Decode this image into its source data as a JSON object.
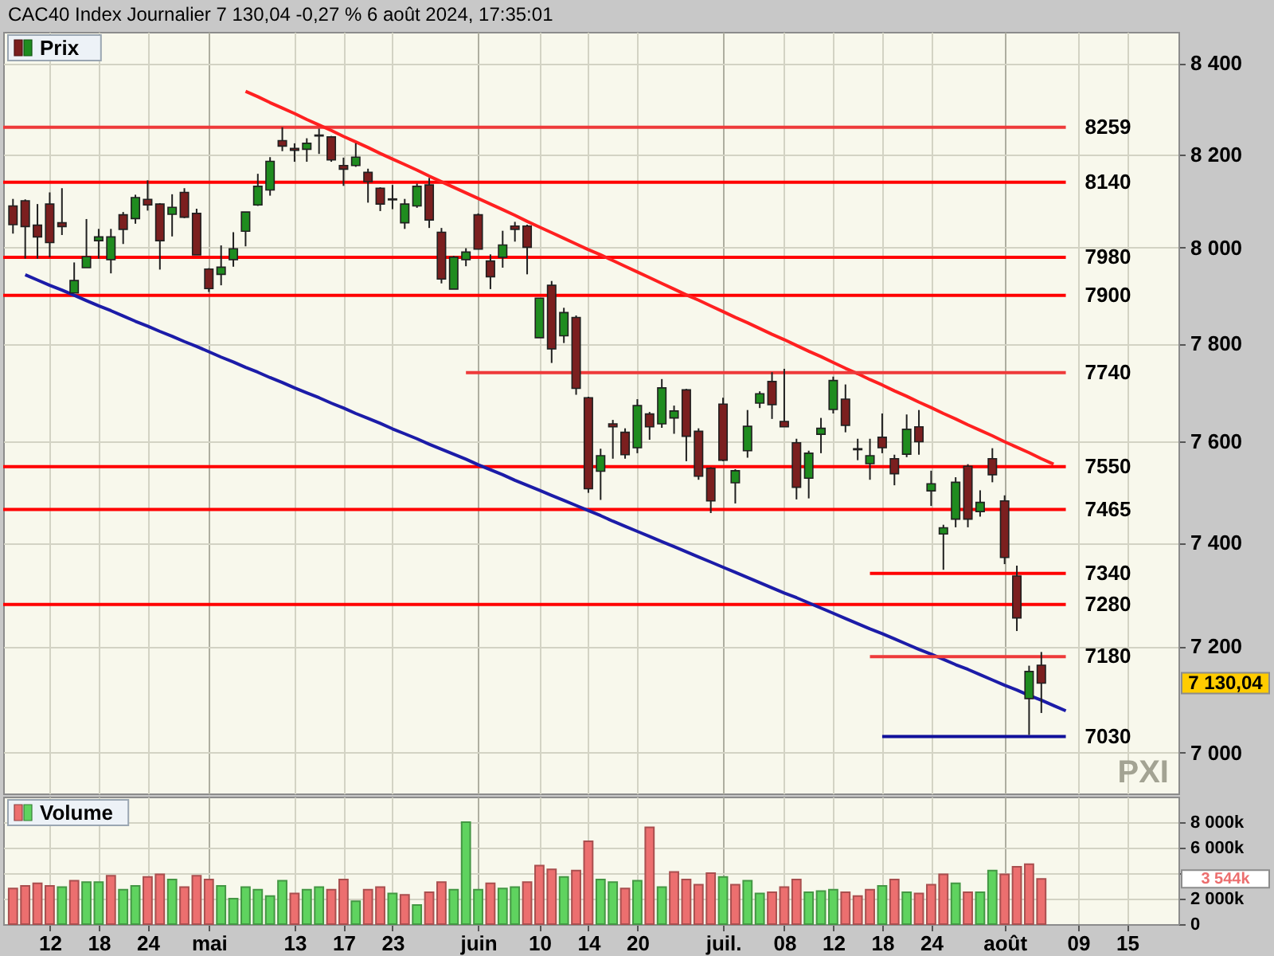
{
  "chart_data": [
    {
      "type": "candlestick",
      "title": "CAC40 Index Journalier 7 130,04 -0,27 % 6 août 2024, 17:35:01",
      "categories": [
        null,
        null,
        null,
        null,
        null,
        null,
        null,
        null,
        null,
        null,
        null,
        null,
        null,
        null,
        null,
        null,
        null,
        null,
        null,
        null,
        null,
        null,
        null,
        null,
        null,
        null,
        null,
        null,
        null,
        null,
        null,
        null,
        null,
        null,
        null,
        null,
        null,
        null,
        null,
        null,
        null,
        null,
        null,
        null,
        null,
        null,
        null,
        null,
        null,
        null,
        null,
        null,
        null,
        null,
        null,
        null,
        null,
        null,
        null,
        null,
        null,
        null,
        null,
        null,
        null,
        null,
        null,
        null,
        null,
        null,
        null,
        null,
        null,
        null,
        null,
        null,
        null,
        null,
        null,
        null,
        null,
        null,
        null,
        null,
        null,
        null,
        null,
        null,
        null,
        null,
        null,
        null,
        null,
        null,
        null,
        null
      ],
      "series": [
        {
          "name": "Prix",
          "type": "candlestick",
          "ohlc": [
            [
              8089,
              8104,
              8030,
              8049
            ],
            [
              8100,
              8103,
              7977,
              8045
            ],
            [
              8048,
              8093,
              7977,
              8023
            ],
            [
              8093,
              8118,
              7980,
              8011
            ],
            [
              8053,
              8127,
              8027,
              8045
            ],
            [
              7905,
              7969,
              7905,
              7931
            ],
            [
              7958,
              8061,
              7958,
              7981
            ],
            [
              8015,
              8040,
              7977,
              8023
            ],
            [
              7975,
              8040,
              7946,
              8023
            ],
            [
              8070,
              8076,
              8008,
              8039
            ],
            [
              8062,
              8113,
              8051,
              8107
            ],
            [
              8103,
              8144,
              8079,
              8091
            ],
            [
              8093,
              8095,
              7954,
              8015
            ],
            [
              8071,
              8114,
              8024,
              8086
            ],
            [
              8118,
              8127,
              8063,
              8065
            ],
            [
              8073,
              8083,
              7985,
              7985
            ],
            [
              7955,
              7957,
              7907,
              7914
            ],
            [
              7944,
              8005,
              7921,
              7959
            ],
            [
              7975,
              8033,
              7960,
              7998
            ],
            [
              8035,
              8076,
              8003,
              8076
            ],
            [
              8091,
              8158,
              8089,
              8131
            ],
            [
              8123,
              8194,
              8111,
              8185
            ],
            [
              8230,
              8259,
              8207,
              8218
            ],
            [
              8213,
              8224,
              8184,
              8209
            ],
            [
              8211,
              8235,
              8184,
              8224
            ],
            [
              8240,
              8256,
              8201,
              8242
            ],
            [
              8238,
              8240,
              8184,
              8188
            ],
            [
              8176,
              8193,
              8132,
              8168
            ],
            [
              8176,
              8224,
              8173,
              8194
            ],
            [
              8161,
              8169,
              8096,
              8141
            ],
            [
              8127,
              8129,
              8078,
              8093
            ],
            [
              8102,
              8134,
              8082,
              8104
            ],
            [
              8053,
              8104,
              8040,
              8093
            ],
            [
              8089,
              8137,
              8085,
              8131
            ],
            [
              8134,
              8149,
              8042,
              8059
            ],
            [
              8033,
              8042,
              7925,
              7934
            ],
            [
              7913,
              7983,
              7913,
              7980
            ],
            [
              7975,
              7999,
              7961,
              7991
            ],
            [
              8070,
              8073,
              7997,
              7997
            ],
            [
              7972,
              7986,
              7913,
              7939
            ],
            [
              7980,
              8036,
              7958,
              8006
            ],
            [
              8046,
              8055,
              8013,
              8039
            ],
            [
              8046,
              8049,
              7944,
              8001
            ],
            [
              7812,
              7894,
              7812,
              7894
            ],
            [
              7921,
              7930,
              7760,
              7789
            ],
            [
              7816,
              7874,
              7801,
              7864
            ],
            [
              7854,
              7858,
              7695,
              7708
            ],
            [
              7689,
              7691,
              7498,
              7506
            ],
            [
              7541,
              7586,
              7484,
              7572
            ],
            [
              7636,
              7644,
              7566,
              7630
            ],
            [
              7619,
              7627,
              7566,
              7574
            ],
            [
              7588,
              7686,
              7577,
              7673
            ],
            [
              7656,
              7660,
              7604,
              7630
            ],
            [
              7636,
              7727,
              7628,
              7709
            ],
            [
              7648,
              7673,
              7616,
              7662
            ],
            [
              7705,
              7707,
              7561,
              7611
            ],
            [
              7621,
              7627,
              7524,
              7531
            ],
            [
              7547,
              7549,
              7458,
              7482
            ],
            [
              7676,
              7689,
              7561,
              7563
            ],
            [
              7518,
              7545,
              7477,
              7542
            ],
            [
              7582,
              7664,
              7568,
              7631
            ],
            [
              7678,
              7702,
              7668,
              7697
            ],
            [
              7722,
              7741,
              7646,
              7675
            ],
            [
              7641,
              7748,
              7630,
              7630
            ],
            [
              7598,
              7606,
              7485,
              7509
            ],
            [
              7527,
              7582,
              7487,
              7577
            ],
            [
              7615,
              7648,
              7577,
              7627
            ],
            [
              7665,
              7732,
              7657,
              7724
            ],
            [
              7686,
              7716,
              7619,
              7633
            ],
            [
              7586,
              7606,
              7563,
              7584
            ],
            [
              7556,
              7606,
              7524,
              7572
            ],
            [
              7609,
              7657,
              7577,
              7588
            ],
            [
              7566,
              7574,
              7513,
              7536
            ],
            [
              7575,
              7655,
              7569,
              7625
            ],
            [
              7630,
              7664,
              7574,
              7600
            ],
            [
              7502,
              7542,
              7472,
              7516
            ],
            [
              7417,
              7435,
              7347,
              7429
            ],
            [
              7446,
              7529,
              7430,
              7519
            ],
            [
              7551,
              7555,
              7430,
              7446
            ],
            [
              7461,
              7503,
              7451,
              7479
            ],
            [
              7566,
              7587,
              7519,
              7534
            ],
            [
              7482,
              7493,
              7358,
              7371
            ],
            [
              7335,
              7355,
              7229,
              7254
            ],
            [
              7101,
              7163,
              7033,
              7152
            ],
            [
              7164,
              7189,
              7074,
              7130.04
            ],
            null,
            null,
            null,
            null,
            null,
            null,
            null,
            null,
            null,
            null,
            null
          ],
          "colors": [
            "#7b1f1f",
            "#7b1f1f",
            "#7b1f1f",
            "#7b1f1f",
            "#7b1f1f",
            "#1f8c1f",
            "#1f8c1f",
            "#1f8c1f",
            "#1f8c1f",
            "#7b1f1f",
            "#1f8c1f",
            "#7b1f1f",
            "#7b1f1f",
            "#1f8c1f",
            "#7b1f1f",
            "#7b1f1f",
            "#7b1f1f",
            "#1f8c1f",
            "#1f8c1f",
            "#1f8c1f",
            "#1f8c1f",
            "#1f8c1f",
            "#7b1f1f",
            "#7b1f1f",
            "#1f8c1f",
            "#1f8c1f",
            "#7b1f1f",
            "#7b1f1f",
            "#1f8c1f",
            "#7b1f1f",
            "#7b1f1f",
            "#1f8c1f",
            "#1f8c1f",
            "#1f8c1f",
            "#7b1f1f",
            "#7b1f1f",
            "#1f8c1f",
            "#1f8c1f",
            "#7b1f1f",
            "#7b1f1f",
            "#1f8c1f",
            "#7b1f1f",
            "#7b1f1f",
            "#1f8c1f",
            "#7b1f1f",
            "#1f8c1f",
            "#7b1f1f",
            "#7b1f1f",
            "#1f8c1f",
            "#7b1f1f",
            "#7b1f1f",
            "#1f8c1f",
            "#7b1f1f",
            "#1f8c1f",
            "#1f8c1f",
            "#7b1f1f",
            "#7b1f1f",
            "#7b1f1f",
            "#7b1f1f",
            "#1f8c1f",
            "#1f8c1f",
            "#1f8c1f",
            "#7b1f1f",
            "#7b1f1f",
            "#7b1f1f",
            "#1f8c1f",
            "#1f8c1f",
            "#1f8c1f",
            "#7b1f1f",
            "#7b1f1f",
            "#1f8c1f",
            "#7b1f1f",
            "#7b1f1f",
            "#1f8c1f",
            "#7b1f1f",
            "#1f8c1f",
            "#1f8c1f",
            "#1f8c1f",
            "#7b1f1f",
            "#1f8c1f",
            "#7b1f1f",
            "#7b1f1f",
            "#7b1f1f",
            "#1f8c1f",
            "#7b1f1f",
            null,
            null,
            null,
            null,
            null,
            null,
            null,
            null,
            null,
            null,
            null
          ]
        },
        {
          "type": "line",
          "color": "#ff2020",
          "values": [
            null,
            null,
            null,
            null,
            null,
            null,
            null,
            null,
            null,
            null,
            null,
            null,
            null,
            null,
            null,
            null,
            null,
            null,
            null,
            8338,
            8326,
            8313,
            8301,
            8289,
            8276,
            8264,
            8252,
            8239,
            8227,
            8215,
            8202,
            8190,
            8178,
            8166,
            8153,
            8141,
            8129,
            8117,
            8105,
            8093,
            8081,
            8069,
            8056,
            8044,
            8032,
            8020,
            8008,
            7996,
            7985,
            7973,
            7961,
            7949,
            7937,
            7925,
            7913,
            7901,
            7890,
            7878,
            7866,
            7854,
            7843,
            7831,
            7819,
            7808,
            7796,
            7784,
            7773,
            7761,
            7749,
            7738,
            7726,
            7715,
            7703,
            7692,
            7680,
            7669,
            7657,
            7646,
            7634,
            7623,
            7612,
            7600,
            7589,
            7578,
            7566,
            7555,
            null,
            null,
            null,
            null,
            null,
            null,
            null,
            null,
            null,
            null
          ]
        },
        {
          "type": "line",
          "color": "#1c1ca8",
          "values": [
            null,
            7943,
            7932,
            7921,
            7911,
            7900,
            7889,
            7878,
            7868,
            7857,
            7846,
            7836,
            7825,
            7815,
            7804,
            7794,
            7783,
            7772,
            7762,
            7751,
            7741,
            7730,
            7720,
            7709,
            7699,
            7689,
            7678,
            7668,
            7657,
            7647,
            7637,
            7626,
            7616,
            7606,
            7595,
            7585,
            7575,
            7565,
            7554,
            7544,
            7534,
            7523,
            7513,
            7503,
            7493,
            7483,
            7473,
            7463,
            7453,
            7442,
            7432,
            7422,
            7412,
            7402,
            7392,
            7382,
            7372,
            7362,
            7352,
            7342,
            7332,
            7322,
            7312,
            7302,
            7293,
            7283,
            7273,
            7263,
            7253,
            7243,
            7233,
            7224,
            7214,
            7204,
            7194,
            7185,
            7175,
            7165,
            7156,
            7146,
            7136,
            7126,
            7117,
            7107,
            7098,
            7088,
            7078,
            null,
            null,
            null,
            null,
            null,
            null,
            null,
            null,
            null
          ]
        },
        {
          "name": "7740",
          "type": "line",
          "color": "#ee3a3a",
          "values": [
            null,
            null,
            null,
            null,
            null,
            null,
            null,
            null,
            null,
            null,
            null,
            null,
            null,
            null,
            null,
            null,
            null,
            null,
            null,
            null,
            null,
            null,
            null,
            null,
            null,
            null,
            null,
            null,
            null,
            null,
            null,
            null,
            null,
            null,
            null,
            null,
            null,
            7740,
            7740,
            7740,
            7740,
            7740,
            7740,
            7740,
            7740,
            7740,
            7740,
            7740,
            7740,
            7740,
            7740,
            7740,
            7740,
            7740,
            7740,
            7740,
            7740,
            7740,
            7740,
            7740,
            7740,
            7740,
            7740,
            7740,
            7740,
            7740,
            7740,
            7740,
            7740,
            7740,
            7740,
            7740,
            7740,
            7740,
            7740,
            7740,
            7740,
            7740,
            7740,
            7740,
            7740,
            7740,
            7740,
            7740,
            7740,
            7740,
            7740,
            null,
            null,
            null,
            null,
            null,
            null,
            null,
            null,
            null
          ]
        },
        {
          "name": "7340",
          "type": "line",
          "color": "#ff0000",
          "values": [
            null,
            null,
            null,
            null,
            null,
            null,
            null,
            null,
            null,
            null,
            null,
            null,
            null,
            null,
            null,
            null,
            null,
            null,
            null,
            null,
            null,
            null,
            null,
            null,
            null,
            null,
            null,
            null,
            null,
            null,
            null,
            null,
            null,
            null,
            null,
            null,
            null,
            null,
            null,
            null,
            null,
            null,
            null,
            null,
            null,
            null,
            null,
            null,
            null,
            null,
            null,
            null,
            null,
            null,
            null,
            null,
            null,
            null,
            null,
            null,
            null,
            null,
            null,
            null,
            null,
            null,
            null,
            null,
            null,
            null,
            7340,
            7340,
            7340,
            7340,
            7340,
            7340,
            7340,
            7340,
            7340,
            7340,
            7340,
            7340,
            7340,
            7340,
            7340,
            7340,
            7340,
            null,
            null,
            null,
            null,
            null,
            null,
            null,
            null,
            null
          ]
        },
        {
          "name": "7180",
          "type": "line",
          "color": "#ee3a3a",
          "values": [
            null,
            null,
            null,
            null,
            null,
            null,
            null,
            null,
            null,
            null,
            null,
            null,
            null,
            null,
            null,
            null,
            null,
            null,
            null,
            null,
            null,
            null,
            null,
            null,
            null,
            null,
            null,
            null,
            null,
            null,
            null,
            null,
            null,
            null,
            null,
            null,
            null,
            null,
            null,
            null,
            null,
            null,
            null,
            null,
            null,
            null,
            null,
            null,
            null,
            null,
            null,
            null,
            null,
            null,
            null,
            null,
            null,
            null,
            null,
            null,
            null,
            null,
            null,
            null,
            null,
            null,
            null,
            null,
            null,
            null,
            7180,
            7180,
            7180,
            7180,
            7180,
            7180,
            7180,
            7180,
            7180,
            7180,
            7180,
            7180,
            7180,
            7180,
            7180,
            7180,
            7180,
            null,
            null,
            null,
            null,
            null,
            null,
            null,
            null,
            null
          ]
        },
        {
          "name": "7030",
          "type": "line",
          "color": "#10109a",
          "values": [
            null,
            null,
            null,
            null,
            null,
            null,
            null,
            null,
            null,
            null,
            null,
            null,
            null,
            null,
            null,
            null,
            null,
            null,
            null,
            null,
            null,
            null,
            null,
            null,
            null,
            null,
            null,
            null,
            null,
            null,
            null,
            null,
            null,
            null,
            null,
            null,
            null,
            null,
            null,
            null,
            null,
            null,
            null,
            null,
            null,
            null,
            null,
            null,
            null,
            null,
            null,
            null,
            null,
            null,
            null,
            null,
            null,
            null,
            null,
            null,
            null,
            null,
            null,
            null,
            null,
            null,
            null,
            null,
            null,
            null,
            null,
            7030,
            7030,
            7030,
            7030,
            7030,
            7030,
            7030,
            7030,
            7030,
            7030,
            7030,
            7030,
            7030,
            7030,
            7030,
            7030,
            null,
            null,
            null,
            null,
            null,
            null,
            null,
            null,
            null
          ]
        }
      ],
      "ref_lines": [
        {
          "axis": "y",
          "value": 8259,
          "label": "8259",
          "color": "#ee3a3a"
        },
        {
          "axis": "y",
          "value": 8140,
          "label": "8140",
          "color": "#ff0000"
        },
        {
          "axis": "y",
          "value": 7980,
          "label": "7980",
          "color": "#ff0000"
        },
        {
          "axis": "y",
          "value": 7900,
          "label": "7900",
          "color": "#ff0000"
        },
        {
          "axis": "y",
          "value": 7550,
          "label": "7550",
          "color": "#ff0000"
        },
        {
          "axis": "y",
          "value": 7465,
          "label": "7465",
          "color": "#ff0000"
        },
        {
          "axis": "y",
          "value": 7280,
          "label": "7280",
          "color": "#ff0000"
        }
      ],
      "ylim": [
        6925,
        8470
      ],
      "yticks": [
        {
          "value": 7000,
          "label": "7 000"
        },
        {
          "value": 7200,
          "label": "7 200"
        },
        {
          "value": 7400,
          "label": "7 400"
        },
        {
          "value": 7600,
          "label": "7 600"
        },
        {
          "value": 7800,
          "label": "7 800"
        },
        {
          "value": 8000,
          "label": "8 000"
        },
        {
          "value": 8200,
          "label": "8 200"
        },
        {
          "value": 8400,
          "label": "8 400"
        }
      ],
      "log": "y",
      "grid": true,
      "legend": "top left",
      "tick_labels": "y",
      "annotations": [
        "7 130,04",
        "PXI"
      ]
    },
    {
      "type": "bar",
      "categories": [
        null,
        null,
        null,
        "12",
        null,
        null,
        null,
        "18",
        null,
        null,
        null,
        "24",
        null,
        null,
        null,
        null,
        "mai",
        null,
        null,
        null,
        null,
        null,
        null,
        "13",
        null,
        null,
        null,
        "17",
        null,
        null,
        null,
        "23",
        null,
        null,
        null,
        null,
        null,
        null,
        "juin",
        null,
        null,
        null,
        null,
        "10",
        null,
        null,
        null,
        "14",
        null,
        null,
        null,
        "20",
        null,
        null,
        null,
        null,
        null,
        null,
        "juil.",
        null,
        null,
        null,
        null,
        "08",
        null,
        null,
        null,
        "12",
        null,
        null,
        null,
        "18",
        null,
        null,
        null,
        "24",
        null,
        null,
        null,
        null,
        null,
        "août",
        null,
        null,
        null,
        null,
        null,
        "09",
        null,
        null,
        null,
        "15",
        null,
        null,
        null,
        null
      ],
      "series": [
        {
          "name": "Volume",
          "values": [
            2800,
            3000,
            3200,
            3000,
            2900,
            3400,
            3300,
            3300,
            3800,
            2700,
            3000,
            3700,
            3900,
            3500,
            2900,
            3800,
            3500,
            3000,
            2000,
            2900,
            2700,
            2200,
            3400,
            2400,
            2700,
            2900,
            2700,
            3500,
            1800,
            2700,
            2900,
            2400,
            2300,
            1500,
            2500,
            3300,
            2700,
            8000,
            2700,
            3200,
            2800,
            2900,
            3300,
            4600,
            4300,
            3700,
            4200,
            6500,
            3500,
            3300,
            2800,
            3400,
            7600,
            2900,
            4100,
            3500,
            3100,
            4000,
            3700,
            3100,
            3400,
            2400,
            2500,
            2900,
            3500,
            2500,
            2600,
            2700,
            2500,
            2200,
            2700,
            3000,
            3500,
            2500,
            2400,
            3100,
            3900,
            3200,
            2500,
            2500,
            4200,
            3900,
            4500,
            4700,
            3544,
            null,
            null,
            null,
            null,
            null,
            null,
            null,
            null,
            null,
            null,
            null
          ],
          "colors": [
            "#ec6f6f",
            "#ec6f6f",
            "#ec6f6f",
            "#ec6f6f",
            "#5fd35f",
            "#ec6f6f",
            "#5fd35f",
            "#5fd35f",
            "#ec6f6f",
            "#5fd35f",
            "#5fd35f",
            "#ec6f6f",
            "#ec6f6f",
            "#5fd35f",
            "#ec6f6f",
            "#ec6f6f",
            "#ec6f6f",
            "#5fd35f",
            "#5fd35f",
            "#5fd35f",
            "#5fd35f",
            "#5fd35f",
            "#5fd35f",
            "#ec6f6f",
            "#5fd35f",
            "#5fd35f",
            "#ec6f6f",
            "#ec6f6f",
            "#5fd35f",
            "#ec6f6f",
            "#ec6f6f",
            "#5fd35f",
            "#ec6f6f",
            "#5fd35f",
            "#ec6f6f",
            "#ec6f6f",
            "#5fd35f",
            "#5fd35f",
            "#5fd35f",
            "#ec6f6f",
            "#5fd35f",
            "#5fd35f",
            "#ec6f6f",
            "#ec6f6f",
            "#ec6f6f",
            "#5fd35f",
            "#ec6f6f",
            "#ec6f6f",
            "#5fd35f",
            "#5fd35f",
            "#ec6f6f",
            "#5fd35f",
            "#ec6f6f",
            "#5fd35f",
            "#ec6f6f",
            "#ec6f6f",
            "#ec6f6f",
            "#ec6f6f",
            "#5fd35f",
            "#ec6f6f",
            "#5fd35f",
            "#5fd35f",
            "#ec6f6f",
            "#ec6f6f",
            "#ec6f6f",
            "#5fd35f",
            "#5fd35f",
            "#5fd35f",
            "#ec6f6f",
            "#ec6f6f",
            "#ec6f6f",
            "#5fd35f",
            "#ec6f6f",
            "#5fd35f",
            "#ec6f6f",
            "#ec6f6f",
            "#ec6f6f",
            "#5fd35f",
            "#ec6f6f",
            "#5fd35f",
            "#5fd35f",
            "#ec6f6f",
            "#ec6f6f",
            "#ec6f6f",
            "#ec6f6f",
            null,
            null,
            null,
            null,
            null,
            null,
            null,
            null,
            null,
            null,
            null
          ]
        }
      ],
      "ylim": [
        0,
        10000
      ],
      "yticks": [
        0,
        {
          "value": 2000,
          "label": "2 000k"
        },
        {
          "value": 4000,
          "label": null
        },
        {
          "value": 6000,
          "label": "6 000k"
        },
        {
          "value": 8000,
          "label": "8 000k"
        }
      ],
      "grid": true,
      "legend": "top left",
      "annotations": [
        "3 544k"
      ]
    }
  ]
}
